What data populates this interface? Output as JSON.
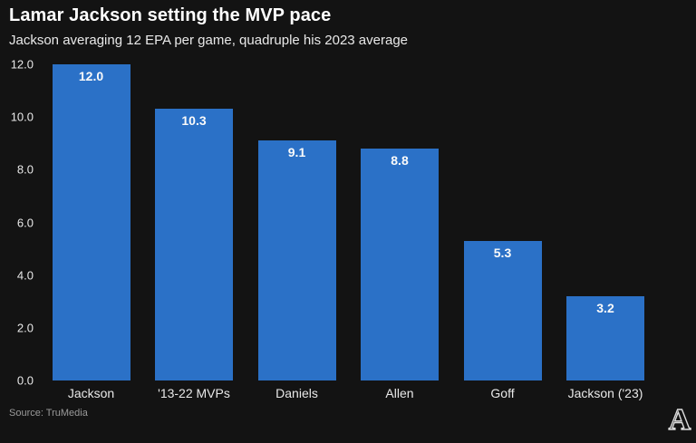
{
  "header": {
    "title": "Lamar Jackson setting the MVP pace",
    "subtitle": "Jackson averaging 12 EPA per game, quadruple his 2023 average"
  },
  "footer": {
    "source": "Source: TruMedia",
    "logo_letter": "A"
  },
  "colors": {
    "background": "#131313",
    "bar": "#2b71c7",
    "title": "#ffffff",
    "subtitle": "#e9e9e9",
    "axis_label": "#e8e8e8",
    "value_label": "#fafafa",
    "source": "#9a9a9a",
    "logo": "#dcdcdc"
  },
  "chart_data": {
    "type": "bar",
    "title": "Lamar Jackson setting the MVP pace",
    "subtitle": "Jackson averaging 12 EPA per game, quadruple his 2023 average",
    "categories": [
      "Jackson",
      "'13-22 MVPs",
      "Daniels",
      "Allen",
      "Goff",
      "Jackson ('23)"
    ],
    "values": [
      12.0,
      10.3,
      9.1,
      8.8,
      5.3,
      3.2
    ],
    "value_labels": [
      "12.0",
      "10.3",
      "9.1",
      "8.8",
      "5.3",
      "3.2"
    ],
    "xlabel": "",
    "ylabel": "",
    "ylim": [
      0,
      12
    ],
    "yticks": [
      0,
      2,
      4,
      6,
      8,
      10,
      12
    ],
    "ytick_labels": [
      "0.0",
      "2.0",
      "4.0",
      "6.0",
      "8.0",
      "10.0",
      "12.0"
    ],
    "grid": false,
    "legend": false
  }
}
